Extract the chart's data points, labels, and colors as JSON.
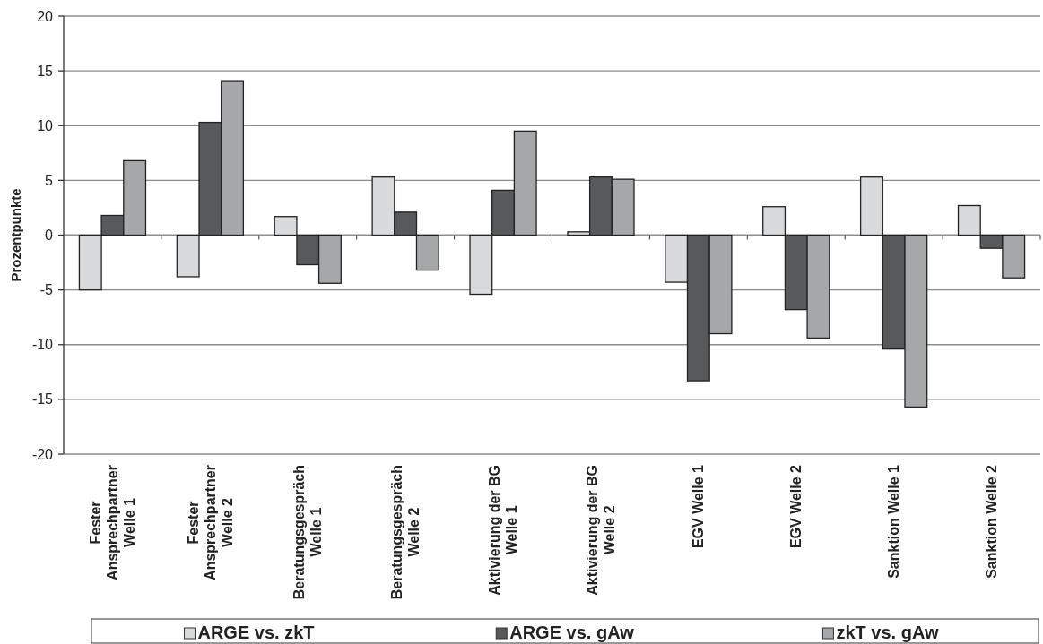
{
  "chart_data": {
    "type": "bar",
    "ylabel": "Prozentpunkte",
    "categories": [
      "Fester Ansprechpartner Welle 1",
      "Fester Ansprechpartner Welle 2",
      "Beratungsgespräch Welle 1",
      "Beratungsgespräch Welle 2",
      "Aktivierung der BG Welle 1",
      "Aktivierung der BG Welle 2",
      "EGV Welle 1",
      "EGV Welle 2",
      "Sanktion Welle 1",
      "Sanktion Welle 2"
    ],
    "series": [
      {
        "name": "ARGE vs. zkT",
        "color": "#d9dadb",
        "values": [
          -5.0,
          -3.8,
          1.7,
          5.3,
          -5.4,
          0.3,
          -4.3,
          2.6,
          5.3,
          2.7
        ]
      },
      {
        "name": "ARGE vs. gAw",
        "color": "#58595b",
        "values": [
          1.8,
          10.3,
          -2.7,
          2.1,
          4.1,
          5.3,
          -13.3,
          -6.8,
          -10.4,
          -1.2
        ]
      },
      {
        "name": "zkT vs. gAw",
        "color": "#a6a7a9",
        "values": [
          6.8,
          14.1,
          -4.4,
          -3.2,
          9.5,
          5.1,
          -9.0,
          -9.4,
          -15.7,
          -3.9
        ]
      }
    ],
    "ylim": [
      -20,
      20
    ],
    "yticks": [
      -20,
      -15,
      -10,
      -5,
      0,
      5,
      10,
      15,
      20
    ],
    "grid": "y",
    "legend": "bottom"
  }
}
